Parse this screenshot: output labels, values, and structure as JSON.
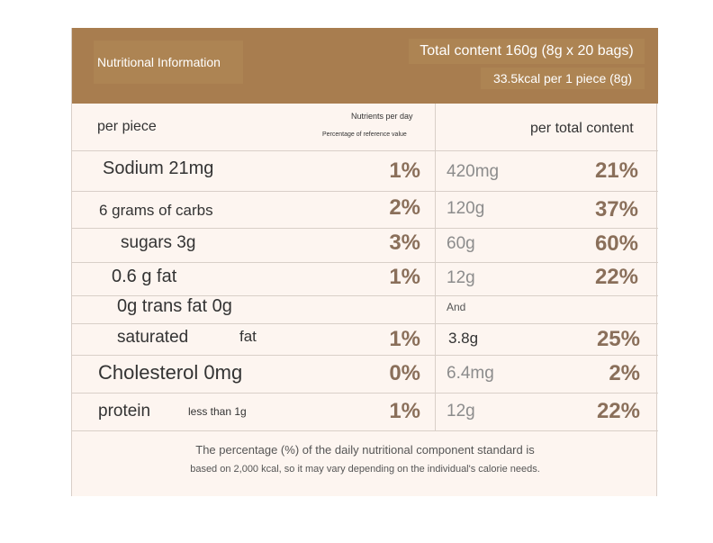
{
  "header": {
    "title": "Nutritional Information",
    "total_content": "Total content 160g (8g x 20 bags)",
    "kcal_per_piece": "33.5kcal per 1 piece (8g)"
  },
  "column_headers": {
    "per_piece": "per piece",
    "nutrients_per_day": "Nutrients per day",
    "percentage_reference": "Percentage of reference value",
    "per_total_content": "per total content"
  },
  "rows": [
    {
      "label": "Sodium 21mg",
      "piece_pct": "1%",
      "total_amount": "420mg",
      "total_pct": "21%"
    },
    {
      "label": "6 grams of carbs",
      "piece_pct": "2%",
      "total_amount": "120g",
      "total_pct": "37%"
    },
    {
      "label": "sugars 3g",
      "piece_pct": "3%",
      "total_amount": "60g",
      "total_pct": "60%"
    },
    {
      "label": "0.6 g fat",
      "piece_pct": "1%",
      "total_amount": "12g",
      "total_pct": "22%"
    },
    {
      "label": "0g trans fat 0g",
      "piece_pct": "",
      "total_amount": "And",
      "total_pct": ""
    },
    {
      "label": "saturated",
      "label_extra": "fat",
      "piece_pct": "1%",
      "total_amount": "3.8g",
      "total_pct": "25%"
    },
    {
      "label": "Cholesterol 0mg",
      "piece_pct": "0%",
      "total_amount": "6.4mg",
      "total_pct": "2%"
    },
    {
      "label": "protein",
      "label_extra": "less than 1g",
      "piece_pct": "1%",
      "total_amount": "12g",
      "total_pct": "22%"
    }
  ],
  "footer": {
    "line1": "The percentage (%) of the daily nutritional component standard is",
    "line2": "based on 2,000 kcal, so it may vary depending on the individual's calorie needs."
  },
  "colors": {
    "header_bg": "#a87d4f",
    "panel_bg": "#fdf5f0",
    "percent_text": "#8a6f5a",
    "amount_text": "#8c8c8c",
    "divider": "#d9cfc8"
  }
}
